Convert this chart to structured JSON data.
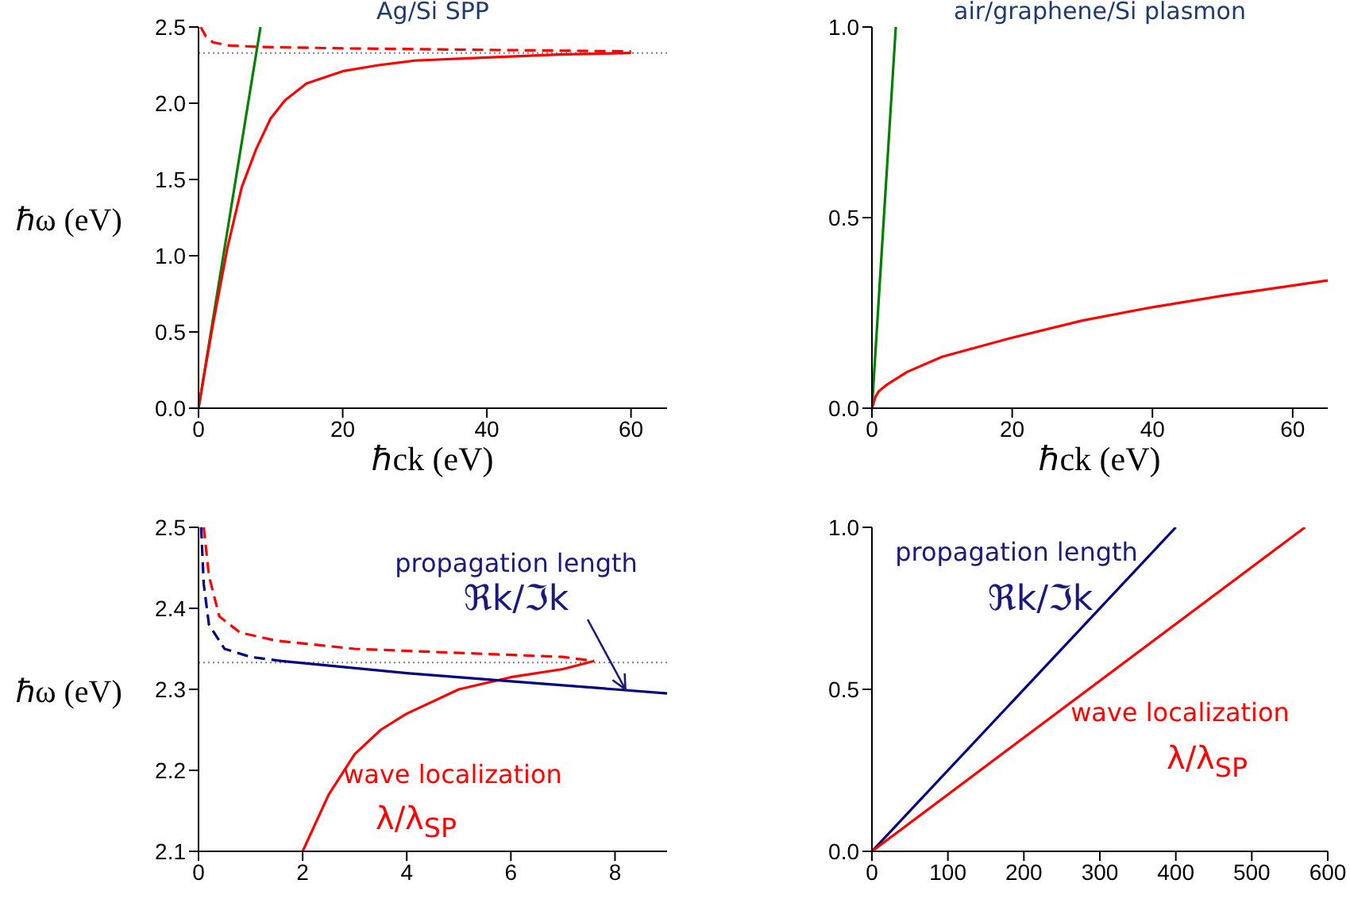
{
  "chart_data": [
    {
      "type": "line",
      "title": "Ag/Si SPP",
      "xlabel": "ℏck (eV)",
      "ylabel": "ℏω (eV)",
      "xlim": [
        0,
        65
      ],
      "xticks": [
        0,
        20,
        40,
        60
      ],
      "ylim": [
        0,
        2.5
      ],
      "yticks": [
        {
          "value": 0,
          "label": "0.0"
        },
        {
          "value": 0.5,
          "label": "0.5"
        },
        {
          "value": 1,
          "label": "1.0"
        },
        {
          "value": 1.5,
          "label": "1.5"
        },
        {
          "value": 2,
          "label": "2.0"
        },
        {
          "value": 2.5,
          "label": "2.5"
        }
      ],
      "marker": "none",
      "ref_lines": [
        {
          "axis": "y",
          "value": 2.33,
          "color": "#808080",
          "line_style": "dotted"
        }
      ],
      "series": [
        {
          "color": "#008000",
          "x": [
            0,
            8.6
          ],
          "values": [
            0,
            2.5
          ]
        },
        {
          "color": "#ff0000",
          "x": [
            0,
            1,
            2,
            3,
            4,
            5,
            6,
            8,
            10,
            12,
            15,
            20,
            25,
            30,
            40,
            50,
            60
          ],
          "values": [
            0,
            0.28,
            0.55,
            0.8,
            1.05,
            1.25,
            1.45,
            1.7,
            1.9,
            2.02,
            2.13,
            2.21,
            2.25,
            2.28,
            2.3,
            2.32,
            2.33
          ]
        },
        {
          "color": "#ff0000",
          "line_style": "dashed",
          "x": [
            0.3,
            1,
            2,
            4,
            8,
            20,
            40,
            60
          ],
          "values": [
            2.5,
            2.44,
            2.4,
            2.38,
            2.37,
            2.36,
            2.35,
            2.34
          ]
        }
      ]
    },
    {
      "type": "line",
      "title": "air/graphene/Si plasmon",
      "xlabel": "ℏck (eV)",
      "xlim": [
        0,
        65
      ],
      "xticks": [
        0,
        20,
        40,
        60
      ],
      "ylim": [
        0,
        1
      ],
      "yticks": [
        {
          "value": 0,
          "label": "0.0"
        },
        {
          "value": 0.5,
          "label": "0.5"
        },
        {
          "value": 1,
          "label": "1.0"
        }
      ],
      "marker": "none",
      "series": [
        {
          "color": "#008000",
          "x": [
            0,
            3.4
          ],
          "values": [
            0,
            1
          ]
        },
        {
          "color": "#ff0000",
          "x": [
            0,
            0.5,
            1,
            2,
            5,
            10,
            20,
            30,
            40,
            50,
            65
          ],
          "values": [
            0,
            0.03,
            0.045,
            0.06,
            0.095,
            0.135,
            0.185,
            0.23,
            0.265,
            0.295,
            0.335
          ]
        }
      ]
    },
    {
      "type": "line",
      "ylabel": "ℏω (eV)",
      "xlim": [
        0,
        9
      ],
      "xticks": [
        0,
        2,
        4,
        6,
        8
      ],
      "ylim": [
        2.1,
        2.5
      ],
      "yticks": [
        2.1,
        2.2,
        2.3,
        2.4,
        2.5
      ],
      "marker": "none",
      "ref_lines": [
        {
          "axis": "y",
          "value": 2.333,
          "color": "#808080",
          "line_style": "dotted"
        }
      ],
      "annotations": [
        "propagation length",
        {
          "text": "ℜk/ℑk",
          "x": 8.2,
          "y": 2.3
        },
        "wave localization",
        "λ/λ$_{SP}$"
      ],
      "series": [
        {
          "color": "#ff0000",
          "line_style": "dashed",
          "x": [
            0.1,
            0.2,
            0.4,
            0.8,
            1.5,
            3,
            5,
            7,
            7.6
          ],
          "values": [
            2.5,
            2.44,
            2.39,
            2.37,
            2.36,
            2.35,
            2.345,
            2.34,
            2.335
          ]
        },
        {
          "color": "#ff0000",
          "x": [
            2,
            2.5,
            3,
            3.5,
            4,
            5,
            6,
            7,
            7.6
          ],
          "values": [
            2.1,
            2.17,
            2.22,
            2.25,
            2.27,
            2.3,
            2.315,
            2.325,
            2.335
          ]
        },
        {
          "color": "#000080",
          "line_style": "dashed",
          "x": [
            0.05,
            0.1,
            0.2,
            0.5,
            1,
            1.6
          ],
          "values": [
            2.5,
            2.43,
            2.38,
            2.35,
            2.34,
            2.335
          ]
        },
        {
          "color": "#000080",
          "x": [
            1.6,
            4,
            6,
            8,
            9
          ],
          "values": [
            2.335,
            2.32,
            2.31,
            2.3,
            2.295
          ]
        }
      ]
    },
    {
      "type": "line",
      "xlim": [
        0,
        600
      ],
      "xticks": [
        0,
        100,
        200,
        300,
        400,
        500,
        600
      ],
      "ylim": [
        0,
        1
      ],
      "yticks": [
        {
          "value": 0,
          "label": "0.0"
        },
        {
          "value": 0.5,
          "label": "0.5"
        },
        {
          "value": 1,
          "label": "1.0"
        }
      ],
      "marker": "none",
      "annotations": [
        "propagation length",
        "ℜk/ℑk",
        "wave localization",
        "λ/λ$_{SP}$"
      ],
      "series": [
        {
          "color": "#000080",
          "x": [
            0,
            400
          ],
          "values": [
            0,
            1
          ]
        },
        {
          "color": "#ff0000",
          "x": [
            0,
            570
          ],
          "values": [
            0,
            1
          ]
        }
      ]
    }
  ]
}
